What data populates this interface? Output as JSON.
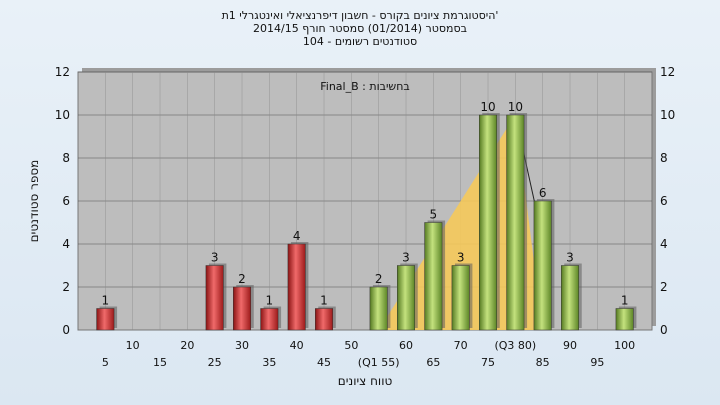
{
  "chart_data": {
    "type": "bar",
    "title_lines": [
      "היסטוגרמת ציונים בקורס - חשבון דיפרנציאלי ואינטגרלי 1ת'",
      "בסמסטר  (01/2014)  סמסטר חורף 2014/15",
      "סטודנטים רשומים - 104"
    ],
    "legend_label": "Final_B : בחשיבות",
    "ylabel": "מספר סטודנטים",
    "xlabel": "טווח ציונים",
    "ylim": [
      0,
      12
    ],
    "yticks": [
      0,
      2,
      4,
      6,
      8,
      10,
      12
    ],
    "x_tick_labels_upper": [
      "10",
      "20",
      "30",
      "40",
      "50",
      "60",
      "70",
      "(Q3 80)",
      "90",
      "100"
    ],
    "x_tick_labels_lower": [
      "5",
      "15",
      "25",
      "35",
      "45",
      "(Q1 55)",
      "65",
      "75",
      "85",
      "95"
    ],
    "bars": [
      {
        "x": 5,
        "value": 1,
        "label": "1",
        "color": "red"
      },
      {
        "x": 25,
        "value": 3,
        "label": "3",
        "color": "red"
      },
      {
        "x": 30,
        "value": 2,
        "label": "2",
        "color": "red"
      },
      {
        "x": 35,
        "value": 1,
        "label": "1",
        "color": "red"
      },
      {
        "x": 40,
        "value": 4,
        "label": "4",
        "color": "red"
      },
      {
        "x": 45,
        "value": 1,
        "label": "1",
        "color": "red"
      },
      {
        "x": 55,
        "value": 2,
        "label": "2",
        "color": "green"
      },
      {
        "x": 60,
        "value": 3,
        "label": "3",
        "color": "green"
      },
      {
        "x": 65,
        "value": 5,
        "label": "5",
        "color": "green"
      },
      {
        "x": 70,
        "value": 3,
        "label": "3",
        "color": "green"
      },
      {
        "x": 75,
        "value": 10,
        "label": "10",
        "color": "green"
      },
      {
        "x": 80,
        "value": 10,
        "label": "10",
        "color": "green"
      },
      {
        "x": 85,
        "value": 6,
        "label": "6",
        "color": "green"
      },
      {
        "x": 90,
        "value": 3,
        "label": "3",
        "color": "green"
      },
      {
        "x": 100,
        "value": 1,
        "label": "1",
        "color": "green"
      }
    ],
    "quartile_band": {
      "x_start": 55,
      "x_end": 85,
      "peak_x": 80,
      "peak_y": 10
    },
    "grid": true,
    "colors": {
      "plot_bg": "#bdbdbd",
      "red": "#d93a3a",
      "green": "#8fbd4c",
      "band": "#f5c95a",
      "grid": "#555555"
    }
  }
}
